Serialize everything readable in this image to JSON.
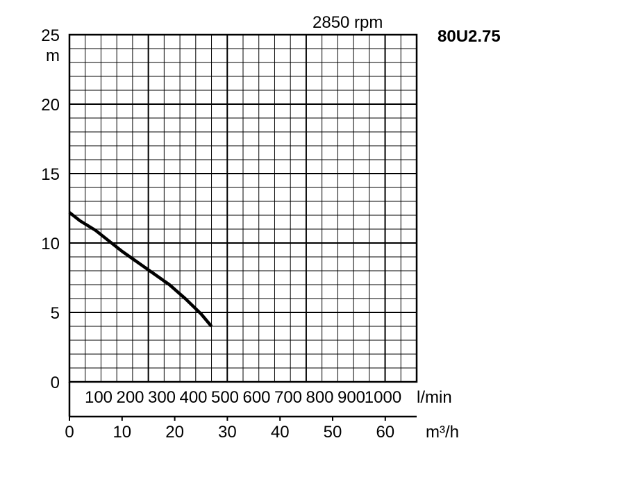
{
  "chart_data": {
    "type": "line",
    "title": "80U2.75",
    "subtitle": "2850 rpm",
    "ylabel": "m",
    "ylim": [
      0,
      25
    ],
    "y_ticks": [
      "0",
      "5",
      "10",
      "15",
      "20",
      "25"
    ],
    "grid": true,
    "x_axes": {
      "lmin": {
        "unit": "l/min",
        "ticks": [
          "100",
          "200",
          "300",
          "400",
          "500",
          "600",
          "700",
          "800",
          "900",
          "1000"
        ]
      },
      "m3h": {
        "unit": "m³/h",
        "xlim": [
          0,
          66
        ],
        "ticks": [
          "0",
          "10",
          "20",
          "30",
          "40",
          "50",
          "60"
        ]
      }
    },
    "series": [
      {
        "x_unit": "m³/h",
        "x": [
          0,
          2,
          5,
          8,
          10,
          13,
          16,
          19,
          22,
          25,
          27
        ],
        "y": [
          12.2,
          11.6,
          10.9,
          10.0,
          9.4,
          8.6,
          7.8,
          7.0,
          6.0,
          4.9,
          4.0
        ]
      }
    ]
  }
}
